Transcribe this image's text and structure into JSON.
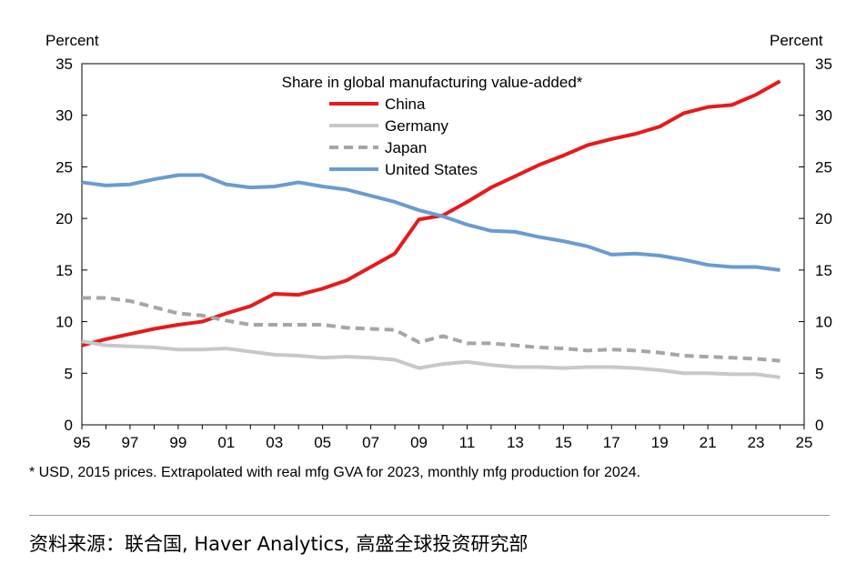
{
  "chart_data": {
    "type": "line",
    "title": "Share in global manufacturing value-added*",
    "ylabel_left": "Percent",
    "ylabel_right": "Percent",
    "ylim": [
      0,
      35
    ],
    "yticks": [
      0,
      5,
      10,
      15,
      20,
      25,
      30,
      35
    ],
    "xlim": [
      1995,
      2025
    ],
    "xtick_labels": [
      "95",
      "97",
      "99",
      "01",
      "03",
      "05",
      "07",
      "09",
      "11",
      "13",
      "15",
      "17",
      "19",
      "21",
      "23",
      "25"
    ],
    "xtick_values": [
      1995,
      1997,
      1999,
      2001,
      2003,
      2005,
      2007,
      2009,
      2011,
      2013,
      2015,
      2017,
      2019,
      2021,
      2023,
      2025
    ],
    "grid": false,
    "legend_position": "top-center",
    "x": [
      1995,
      1996,
      1997,
      1998,
      1999,
      2000,
      2001,
      2002,
      2003,
      2004,
      2005,
      2006,
      2007,
      2008,
      2009,
      2010,
      2011,
      2012,
      2013,
      2014,
      2015,
      2016,
      2017,
      2018,
      2019,
      2020,
      2021,
      2022,
      2023,
      2024
    ],
    "series": [
      {
        "name": "China",
        "color": "#e8191b",
        "dash": false,
        "values": [
          7.7,
          8.3,
          8.8,
          9.3,
          9.7,
          10.0,
          10.8,
          11.5,
          12.7,
          12.6,
          13.2,
          14.0,
          15.3,
          16.6,
          19.9,
          20.3,
          21.6,
          23.0,
          24.1,
          25.2,
          26.1,
          27.1,
          27.7,
          28.2,
          28.9,
          30.2,
          30.8,
          31.0,
          32.0,
          33.3
        ]
      },
      {
        "name": "Germany",
        "color": "#c8c8c8",
        "dash": false,
        "values": [
          8.1,
          7.7,
          7.6,
          7.5,
          7.3,
          7.3,
          7.4,
          7.1,
          6.8,
          6.7,
          6.5,
          6.6,
          6.5,
          6.3,
          5.5,
          5.9,
          6.1,
          5.8,
          5.6,
          5.6,
          5.5,
          5.6,
          5.6,
          5.5,
          5.3,
          5.0,
          5.0,
          4.9,
          4.9,
          4.6
        ]
      },
      {
        "name": "Japan",
        "color": "#a6a6a6",
        "dash": true,
        "values": [
          12.3,
          12.3,
          12.0,
          11.4,
          10.8,
          10.6,
          10.1,
          9.7,
          9.7,
          9.7,
          9.7,
          9.4,
          9.3,
          9.2,
          8.0,
          8.6,
          7.9,
          7.9,
          7.7,
          7.5,
          7.4,
          7.2,
          7.3,
          7.2,
          7.0,
          6.7,
          6.6,
          6.5,
          6.4,
          6.2
        ]
      },
      {
        "name": "United States",
        "color": "#6a9bd1",
        "dash": false,
        "values": [
          23.5,
          23.2,
          23.3,
          23.8,
          24.2,
          24.2,
          23.3,
          23.0,
          23.1,
          23.5,
          23.1,
          22.8,
          22.2,
          21.6,
          20.8,
          20.2,
          19.4,
          18.8,
          18.7,
          18.2,
          17.8,
          17.3,
          16.5,
          16.6,
          16.4,
          16.0,
          15.5,
          15.3,
          15.3,
          15.0
        ]
      }
    ]
  },
  "footnote": "* USD, 2015 prices. Extrapolated with real mfg GVA for 2023, monthly mfg production for 2024.",
  "source": "资料来源：联合国, Haver Analytics, 高盛全球投资研究部"
}
